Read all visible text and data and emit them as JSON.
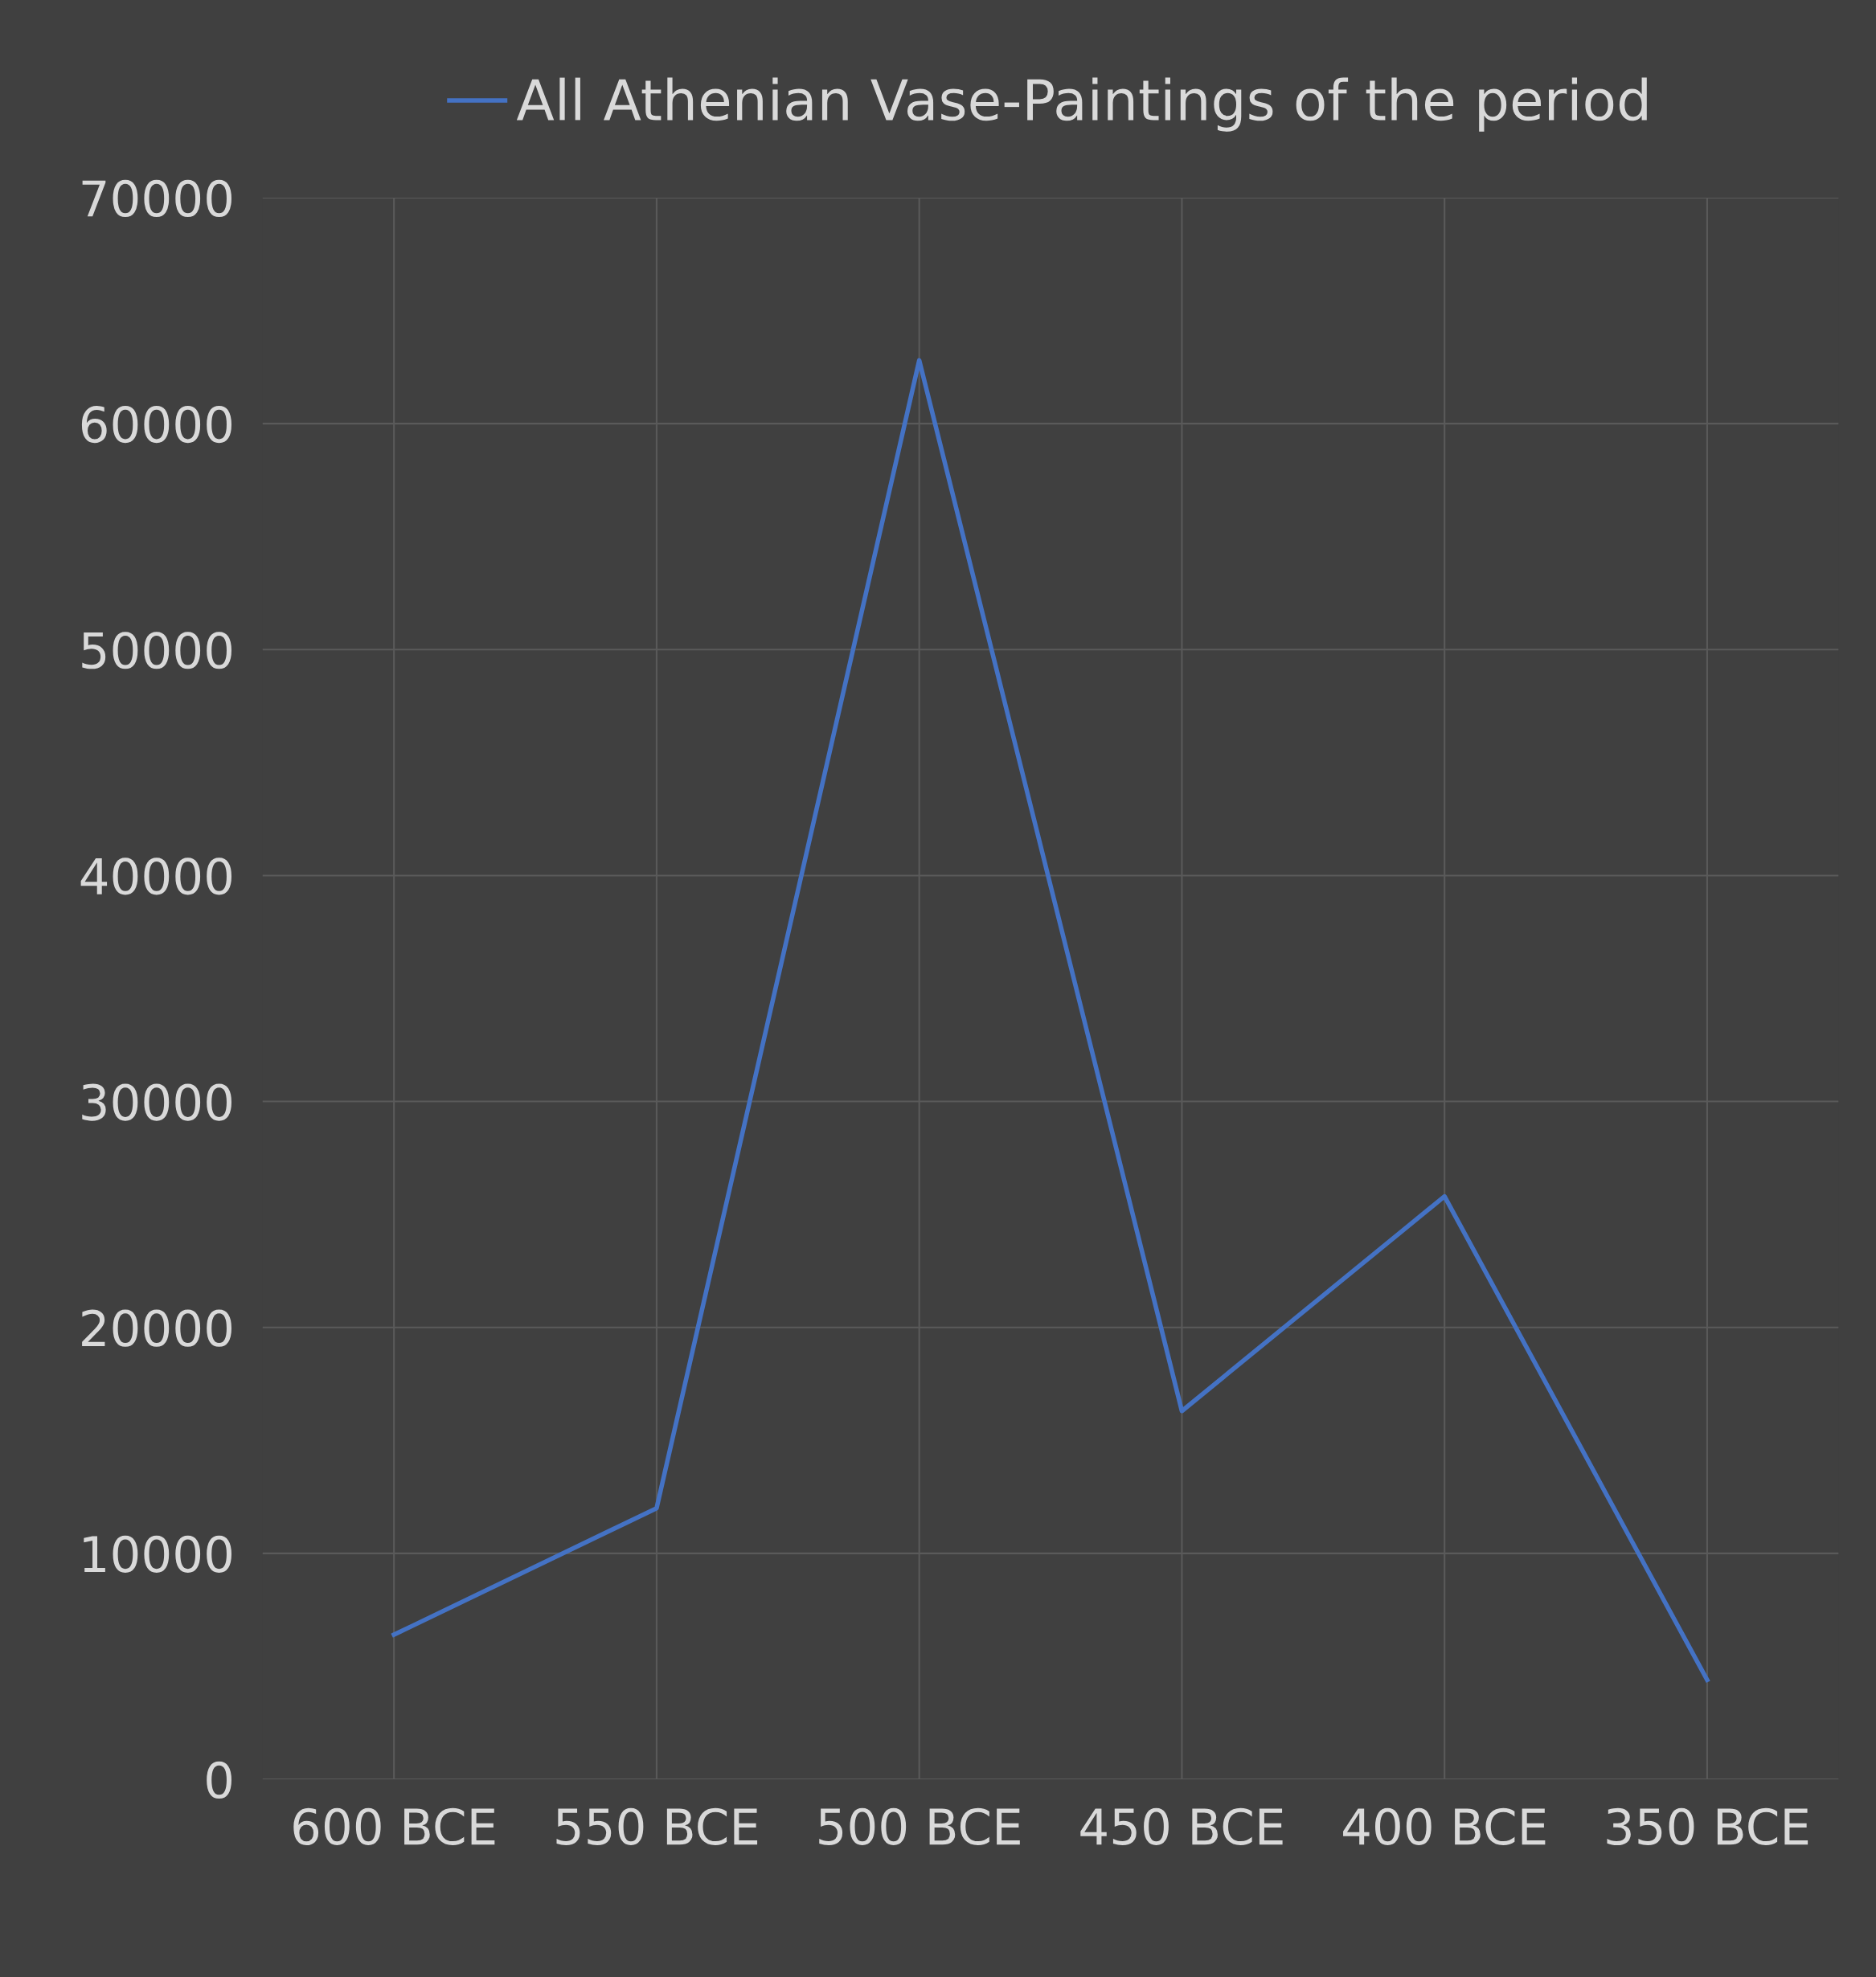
{
  "chart_data": {
    "type": "line",
    "categories": [
      "600 BCE",
      "550 BCE",
      "500 BCE",
      "450 BCE",
      "400 BCE",
      "350 BCE"
    ],
    "series": [
      {
        "name": "All Athenian Vase-Paintings of the period",
        "color": "#4472c4",
        "values": [
          6400,
          12000,
          62800,
          16300,
          25800,
          4400
        ]
      }
    ],
    "ylim": [
      0,
      70000
    ],
    "yticks": [
      0,
      10000,
      20000,
      30000,
      40000,
      50000,
      60000,
      70000
    ],
    "grid": true,
    "legend": "top",
    "marker": "none",
    "line_style": "solid"
  }
}
